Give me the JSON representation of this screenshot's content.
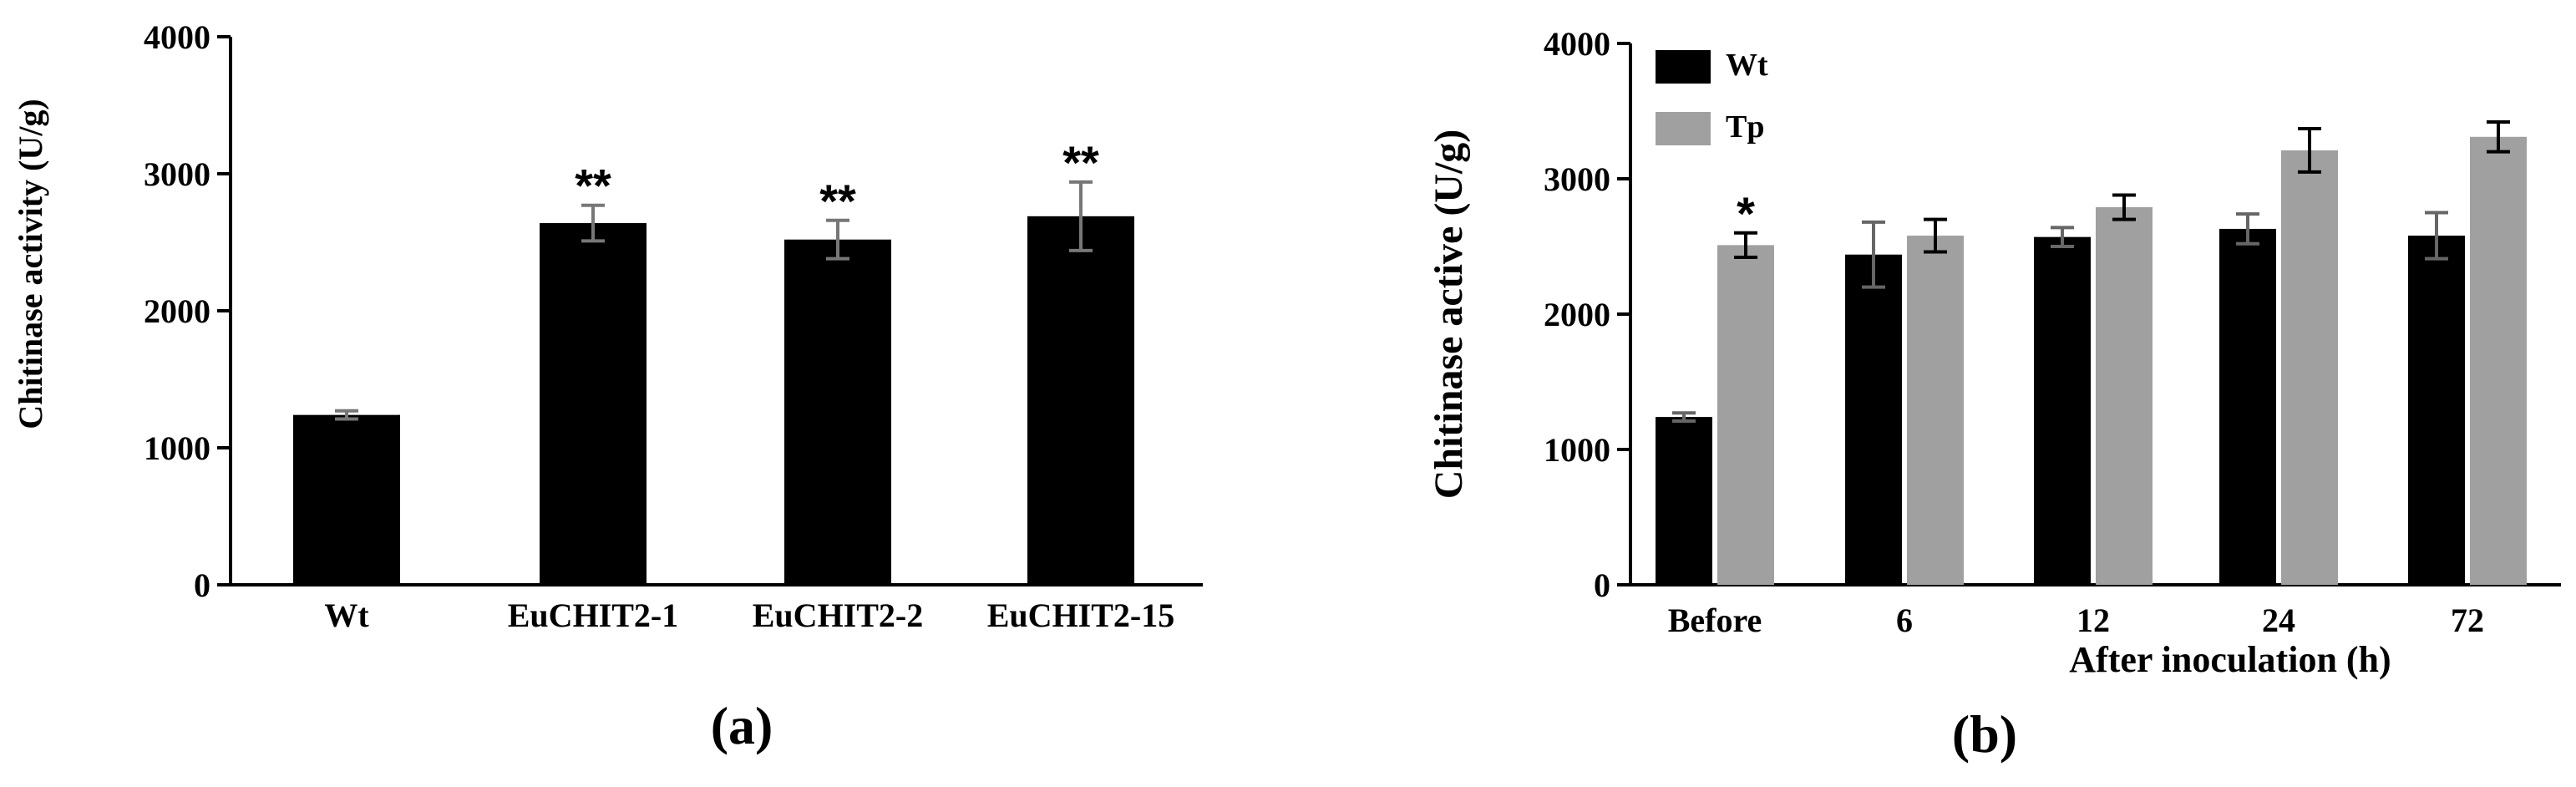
{
  "chart_data": [
    {
      "type": "bar",
      "panel_label": "(a)",
      "ylabel": "Chitinase activity (U/g)",
      "xlabel": "",
      "ylim": [
        0,
        4000
      ],
      "yticks": [
        "0",
        "1000",
        "2000",
        "3000",
        "4000"
      ],
      "categories": [
        "Wt",
        "EuCHIT2-1",
        "EuCHIT2-2",
        "EuCHIT2-15"
      ],
      "series": [
        {
          "values": [
            1240,
            2640,
            2520,
            2690
          ],
          "errors": [
            30,
            130,
            140,
            250
          ],
          "significance": [
            "",
            "**",
            "**",
            "**"
          ],
          "color": "#000000",
          "error_color": "#777777"
        }
      ],
      "grid": false
    },
    {
      "type": "bar",
      "panel_label": "(b)",
      "ylabel": "Chitinase active (U/g)",
      "xlabel": "After inoculation (h)",
      "ylim": [
        0,
        4000
      ],
      "yticks": [
        "0",
        "1000",
        "2000",
        "3000",
        "4000"
      ],
      "categories": [
        "Before",
        "6",
        "12",
        "24",
        "72"
      ],
      "series": [
        {
          "name": "Wt",
          "values": [
            1240,
            2440,
            2570,
            2630,
            2580
          ],
          "errors": [
            30,
            240,
            70,
            110,
            170
          ],
          "significance": [
            "",
            "",
            "",
            "",
            ""
          ],
          "color": "#000000",
          "error_color": "#666666"
        },
        {
          "name": "Tp",
          "values": [
            2510,
            2580,
            2790,
            3210,
            3310
          ],
          "errors": [
            90,
            120,
            90,
            160,
            110
          ],
          "significance": [
            "*",
            "",
            "",
            "",
            ""
          ],
          "color": "#a0a0a0",
          "error_color": "#000000"
        }
      ],
      "legend_position": "top-left",
      "grid": false
    }
  ]
}
